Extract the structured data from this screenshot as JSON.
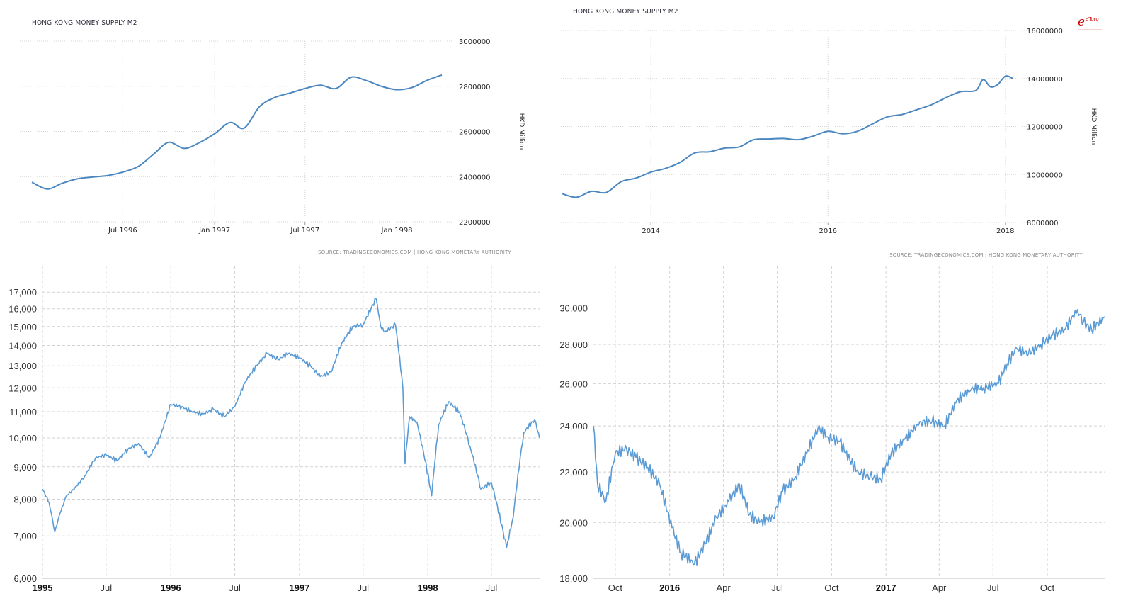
{
  "chart_data": [
    {
      "type": "line",
      "title": "HONG KONG MONEY SUPPLY M2",
      "ylabel": "HKD Million",
      "source": "SOURCE: TRADINGECONOMICS.COM | HONG KONG MONETARY AUTHORITY",
      "x_ticks": [
        "Jul 1996",
        "Jan 1997",
        "Jul 1997",
        "Jan 1998"
      ],
      "y_ticks": [
        "3000000",
        "2800000",
        "2600000",
        "2400000",
        "2200000"
      ],
      "ylim": [
        2200000,
        3000000
      ],
      "xlim": [
        "1996-01-01",
        "1998-04-01"
      ],
      "grid": true,
      "series": [
        {
          "x": [
            "1996-01-01",
            "1996-02-01",
            "1996-03-01",
            "1996-04-01",
            "1996-05-01",
            "1996-06-01",
            "1996-07-01",
            "1996-08-01",
            "1996-09-01",
            "1996-10-01",
            "1996-11-01",
            "1996-12-01",
            "1997-01-01",
            "1997-02-01",
            "1997-03-01",
            "1997-04-01",
            "1997-05-01",
            "1997-06-01",
            "1997-07-01",
            "1997-08-01",
            "1997-09-01",
            "1997-10-01",
            "1997-11-01",
            "1997-12-01",
            "1998-01-01",
            "1998-02-01",
            "1998-03-01",
            "1998-04-01"
          ],
          "values": [
            2375000,
            2345000,
            2370000,
            2390000,
            2398000,
            2405000,
            2420000,
            2445000,
            2500000,
            2552000,
            2525000,
            2550000,
            2590000,
            2640000,
            2615000,
            2710000,
            2750000,
            2770000,
            2790000,
            2805000,
            2790000,
            2840000,
            2825000,
            2800000,
            2785000,
            2795000,
            2825000,
            2850000
          ]
        }
      ]
    },
    {
      "type": "line",
      "title": "HONG KONG MONEY SUPPLY M2",
      "ylabel": "HKD Million",
      "source": "SOURCE: TRADINGECONOMICS.COM | HONG KONG MONETARY AUTHORITY",
      "logo": "eToro",
      "x_ticks": [
        "2014",
        "2016",
        "2018"
      ],
      "y_ticks": [
        "16000000",
        "14000000",
        "12000000",
        "10000000",
        "8000000"
      ],
      "ylim": [
        8000000,
        16000000
      ],
      "xlim": [
        "2013-01-01",
        "2018-03-01"
      ],
      "grid": true,
      "series": [
        {
          "x": [
            "2013-01-01",
            "2013-03-01",
            "2013-05-01",
            "2013-07-01",
            "2013-09-01",
            "2013-11-01",
            "2014-01-01",
            "2014-03-01",
            "2014-05-01",
            "2014-07-01",
            "2014-09-01",
            "2014-11-01",
            "2015-01-01",
            "2015-03-01",
            "2015-05-01",
            "2015-07-01",
            "2015-09-01",
            "2015-11-01",
            "2016-01-01",
            "2016-03-01",
            "2016-05-01",
            "2016-07-01",
            "2016-09-01",
            "2016-11-01",
            "2017-01-01",
            "2017-03-01",
            "2017-05-01",
            "2017-07-01",
            "2017-09-01",
            "2017-10-01",
            "2017-11-01",
            "2017-12-01",
            "2018-01-01",
            "2018-02-01"
          ],
          "values": [
            9200000,
            9050000,
            9300000,
            9250000,
            9700000,
            9850000,
            10100000,
            10250000,
            10500000,
            10900000,
            10950000,
            11100000,
            11150000,
            11450000,
            11480000,
            11500000,
            11450000,
            11600000,
            11800000,
            11700000,
            11800000,
            12100000,
            12400000,
            12500000,
            12700000,
            12900000,
            13200000,
            13450000,
            13500000,
            13950000,
            13650000,
            13750000,
            14100000,
            14000000
          ]
        }
      ]
    },
    {
      "type": "line",
      "title": "",
      "x_ticks": [
        "1995",
        "Jul",
        "1996",
        "Jul",
        "1997",
        "Jul",
        "1998",
        "Jul"
      ],
      "y_ticks": [
        "17,000",
        "16,000",
        "15,000",
        "14,000",
        "13,000",
        "12,000",
        "11,000",
        "10,000",
        "9,000",
        "8,000",
        "7,000",
        "6,000"
      ],
      "y_scale": "log",
      "ylim": [
        6000,
        17500
      ],
      "xlim": [
        "1995-01-01",
        "1998-11-15"
      ],
      "grid": true,
      "series": [
        {
          "x": [
            "1995-01-01",
            "1995-01-20",
            "1995-02-05",
            "1995-02-20",
            "1995-03-10",
            "1995-04-01",
            "1995-05-01",
            "1995-06-01",
            "1995-07-01",
            "1995-08-01",
            "1995-09-01",
            "1995-10-01",
            "1995-11-01",
            "1995-12-01",
            "1996-01-01",
            "1996-02-01",
            "1996-03-01",
            "1996-04-01",
            "1996-05-01",
            "1996-06-01",
            "1996-07-01",
            "1996-08-01",
            "1996-09-01",
            "1996-10-01",
            "1996-11-01",
            "1996-12-01",
            "1997-01-01",
            "1997-02-01",
            "1997-03-01",
            "1997-04-01",
            "1997-05-01",
            "1997-06-01",
            "1997-07-01",
            "1997-08-07",
            "1997-08-20",
            "1997-09-01",
            "1997-10-01",
            "1997-10-22",
            "1997-10-28",
            "1997-11-10",
            "1997-12-01",
            "1998-01-12",
            "1998-02-01",
            "1998-03-01",
            "1998-04-01",
            "1998-05-01",
            "1998-06-01",
            "1998-07-01",
            "1998-08-13",
            "1998-09-01",
            "1998-10-01",
            "1998-11-01",
            "1998-11-15"
          ],
          "values": [
            8300,
            7900,
            7100,
            7600,
            8100,
            8300,
            8700,
            9300,
            9400,
            9200,
            9600,
            9800,
            9300,
            10000,
            11300,
            11200,
            11000,
            10900,
            11100,
            10800,
            11200,
            12300,
            13000,
            13600,
            13300,
            13600,
            13400,
            13000,
            12500,
            12700,
            14100,
            15000,
            15100,
            16600,
            15000,
            14700,
            15100,
            12000,
            9100,
            10800,
            10600,
            8100,
            10500,
            11400,
            11000,
            9700,
            8300,
            8500,
            6700,
            7500,
            10200,
            10700,
            10000
          ]
        }
      ]
    },
    {
      "type": "line",
      "title": "",
      "x_ticks": [
        "Oct",
        "2016",
        "Apr",
        "Jul",
        "Oct",
        "2017",
        "Apr",
        "Jul",
        "Oct"
      ],
      "y_ticks": [
        "30,000",
        "28,000",
        "26,000",
        "24,000",
        "22,000",
        "20,000",
        "18,000"
      ],
      "y_scale": "log",
      "ylim": [
        18000,
        31000
      ],
      "xlim": [
        "2015-08-25",
        "2018-01-06"
      ],
      "grid": true,
      "series": [
        {
          "x": [
            "2015-08-25",
            "2015-09-01",
            "2015-09-15",
            "2015-10-01",
            "2015-10-20",
            "2015-11-05",
            "2015-11-25",
            "2015-12-15",
            "2016-01-05",
            "2016-01-20",
            "2016-02-12",
            "2016-03-01",
            "2016-03-20",
            "2016-04-10",
            "2016-04-28",
            "2016-05-15",
            "2016-06-01",
            "2016-06-24",
            "2016-07-10",
            "2016-08-01",
            "2016-08-20",
            "2016-09-08",
            "2016-09-25",
            "2016-10-15",
            "2016-11-01",
            "2016-11-15",
            "2016-12-05",
            "2016-12-23",
            "2017-01-10",
            "2017-02-01",
            "2017-03-01",
            "2017-03-20",
            "2017-04-10",
            "2017-05-01",
            "2017-05-25",
            "2017-06-15",
            "2017-07-10",
            "2017-07-25",
            "2017-08-10",
            "2017-08-30",
            "2017-09-20",
            "2017-10-10",
            "2017-10-30",
            "2017-11-21",
            "2017-12-01",
            "2017-12-15",
            "2018-01-06"
          ],
          "values": [
            24000,
            21500,
            20800,
            22800,
            23000,
            22600,
            22200,
            21500,
            19800,
            18900,
            18500,
            19200,
            20200,
            20800,
            21500,
            20300,
            20000,
            20200,
            21200,
            21800,
            22800,
            23900,
            23500,
            23300,
            22500,
            22000,
            21800,
            21700,
            22800,
            23400,
            24200,
            24200,
            24000,
            25200,
            25700,
            25800,
            26000,
            27000,
            27800,
            27500,
            28000,
            28500,
            28800,
            29900,
            29200,
            28800,
            29500
          ]
        }
      ]
    }
  ]
}
